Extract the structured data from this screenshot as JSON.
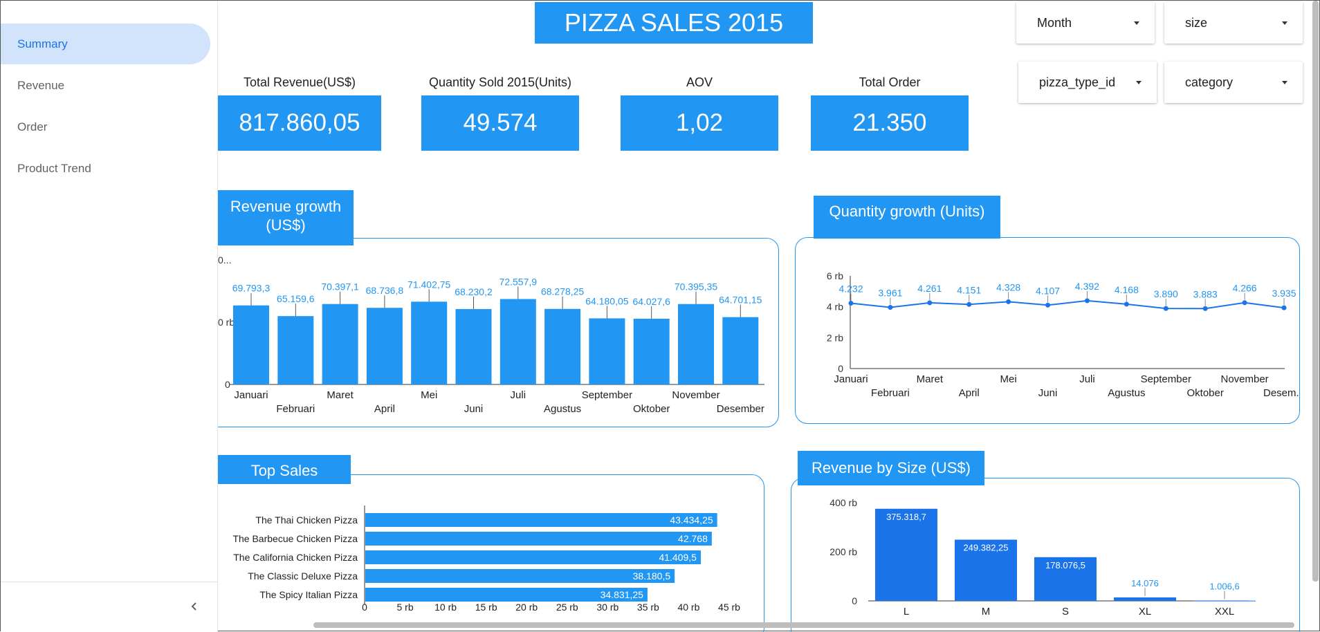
{
  "sidebar": {
    "items": [
      {
        "label": "Summary",
        "active": true
      },
      {
        "label": "Revenue",
        "active": false
      },
      {
        "label": "Order",
        "active": false
      },
      {
        "label": "Product Trend",
        "active": false
      }
    ],
    "collapse_icon": "chevron-left-icon"
  },
  "header": {
    "title": "PIZZA SALES 2015"
  },
  "filters": [
    {
      "label": "Month"
    },
    {
      "label": "size"
    },
    {
      "label": "pizza_type_id"
    },
    {
      "label": "category"
    }
  ],
  "kpis": [
    {
      "label": "Total Revenue(US$)",
      "value": "817.860,05"
    },
    {
      "label": "Quantity Sold 2015(Units)",
      "value": "49.574"
    },
    {
      "label": "AOV",
      "value": "1,02"
    },
    {
      "label": "Total Order",
      "value": "21.350"
    }
  ],
  "colors": {
    "accent": "#2196f3",
    "bar_dark": "#1a73e8",
    "nav_active_bg": "#d2e3fc"
  },
  "sections": {
    "revenue_growth": "Revenue growth (US$)",
    "quantity_growth": "Quantity growth (Units)",
    "top_sales": "Top Sales",
    "revenue_by_size": "Revenue by Size (US$)"
  },
  "chart_data": [
    {
      "type": "bar",
      "categories": [
        "Januari",
        "Februari",
        "Maret",
        "April",
        "Mei",
        "Juni",
        "Juli",
        "Agustus",
        "September",
        "Oktober",
        "November",
        "Desember"
      ],
      "values": [
        69793.3,
        65159.6,
        70397.1,
        68736.8,
        71402.75,
        68230.2,
        72557.9,
        68278.25,
        64180.05,
        64027.6,
        70395.35,
        64701.15
      ],
      "value_labels": [
        "69.793,3",
        "65.159,6",
        "70.397,1",
        "68.736,8",
        "71.402,75",
        "68.230,2",
        "72.557,9",
        "68.278,25",
        "64.180,05",
        "64.027,6",
        "70.395,35",
        "64.701,15"
      ],
      "ytick_labels": [
        "0",
        "0 rb",
        "0..."
      ],
      "ylim": [
        0,
        100000
      ]
    },
    {
      "type": "line",
      "x": [
        "Januari",
        "Februari",
        "Maret",
        "April",
        "Mei",
        "Juni",
        "Juli",
        "Agustus",
        "September",
        "Oktober",
        "November",
        "Desember"
      ],
      "x_labels_top": [
        "Januari",
        "",
        "Maret",
        "",
        "Mei",
        "",
        "Juli",
        "",
        "September",
        "",
        "November",
        ""
      ],
      "x_labels_bottom": [
        "",
        "Februari",
        "",
        "April",
        "",
        "Juni",
        "",
        "Agustus",
        "",
        "Oktober",
        "",
        "Desem..."
      ],
      "values": [
        4232,
        3961,
        4261,
        4151,
        4328,
        4107,
        4392,
        4168,
        3890,
        3883,
        4266,
        3935
      ],
      "value_labels": [
        "4.232",
        "3.961",
        "4.261",
        "4.151",
        "4.328",
        "4.107",
        "4.392",
        "4.168",
        "3.890",
        "3.883",
        "4.266",
        "3.935"
      ],
      "yticks": [
        0,
        2000,
        4000,
        6000
      ],
      "ytick_labels": [
        "0",
        "2 rb",
        "4 rb",
        "6 rb"
      ],
      "ylim": [
        0,
        6000
      ]
    },
    {
      "type": "bar",
      "orientation": "horizontal",
      "categories": [
        "The Thai Chicken Pizza",
        "The Barbecue Chicken Pizza",
        "The California Chicken Pizza",
        "The Classic Deluxe Pizza",
        "The Spicy Italian Pizza"
      ],
      "values": [
        43434.25,
        42768,
        41409.5,
        38180.5,
        34831.25
      ],
      "value_labels": [
        "43.434,25",
        "42.768",
        "41.409,5",
        "38.180,5",
        "34.831,25"
      ],
      "xticks": [
        0,
        5000,
        10000,
        15000,
        20000,
        25000,
        30000,
        35000,
        40000,
        45000
      ],
      "xtick_labels": [
        "0",
        "5 rb",
        "10 rb",
        "15 rb",
        "20 rb",
        "25 rb",
        "30 rb",
        "35 rb",
        "40 rb",
        "45 rb"
      ],
      "xlim": [
        0,
        45000
      ]
    },
    {
      "type": "bar",
      "categories": [
        "L",
        "M",
        "S",
        "XL",
        "XXL"
      ],
      "values": [
        375318.7,
        249382.25,
        178076.5,
        14076,
        1006.6
      ],
      "value_labels": [
        "375.318,7",
        "249.382,25",
        "178.076,5",
        "14.076",
        "1.006,6"
      ],
      "yticks": [
        0,
        200000,
        400000
      ],
      "ytick_labels": [
        "0",
        "200 rb",
        "400 rb"
      ],
      "ylim": [
        0,
        400000
      ]
    }
  ]
}
